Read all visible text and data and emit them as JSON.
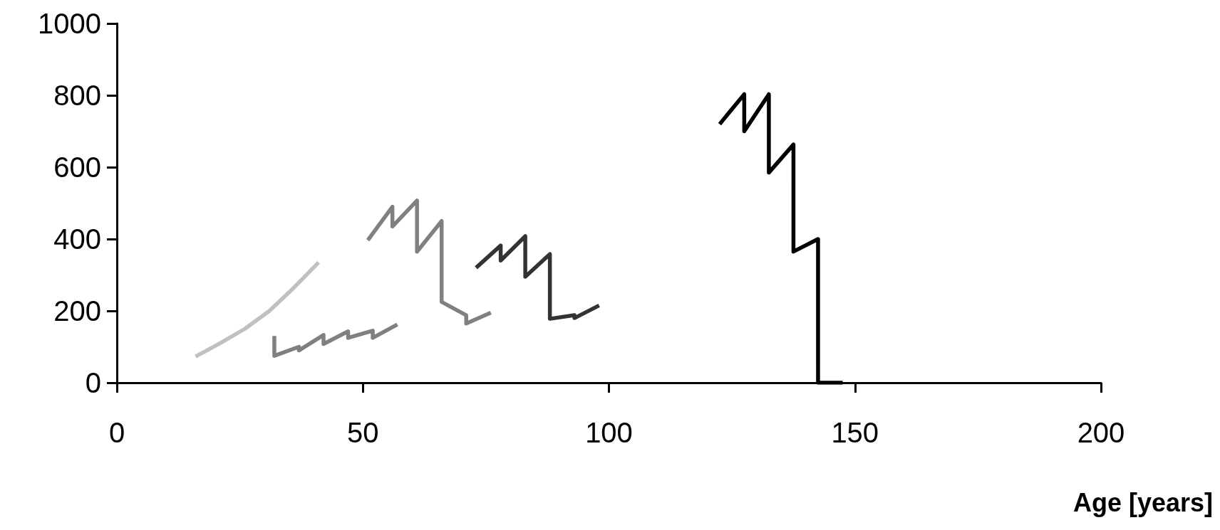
{
  "chart_data": {
    "type": "line",
    "xlabel": "Age [years]",
    "xlim": [
      0,
      200
    ],
    "xticks": [
      0,
      50,
      100,
      150,
      200
    ],
    "ylim": [
      0,
      1000
    ],
    "yticks": [
      0,
      200,
      400,
      600,
      800,
      1000
    ],
    "grid": false,
    "marker": "none",
    "line_style": "solid",
    "series": [
      {
        "color": "#c0c0c0",
        "x": [
          16,
          21,
          26,
          31,
          36,
          41
        ],
        "values": [
          73,
          110,
          150,
          200,
          265,
          335
        ]
      },
      {
        "color": "#808080",
        "x": [
          32,
          32,
          37,
          37,
          42,
          42,
          47,
          47,
          52,
          52,
          57
        ],
        "values": [
          130,
          75,
          100,
          90,
          133,
          108,
          143,
          125,
          145,
          125,
          162
        ]
      },
      {
        "color": "#808080",
        "x": [
          51,
          56,
          56,
          61,
          61,
          66,
          66,
          71,
          71,
          76
        ],
        "values": [
          397,
          490,
          435,
          507,
          365,
          450,
          225,
          188,
          165,
          195
        ]
      },
      {
        "color": "#333333",
        "x": [
          73,
          78,
          78,
          83,
          83,
          88,
          88,
          93,
          93,
          98
        ],
        "values": [
          320,
          382,
          340,
          408,
          295,
          358,
          178,
          188,
          180,
          215
        ]
      },
      {
        "color": "#000000",
        "x": [
          122.5,
          127.5,
          127.5,
          132.5,
          132.5,
          137.5,
          137.5,
          142.5,
          142.5,
          147.5
        ],
        "values": [
          720,
          803,
          700,
          803,
          585,
          663,
          365,
          400,
          0,
          0
        ]
      }
    ]
  }
}
